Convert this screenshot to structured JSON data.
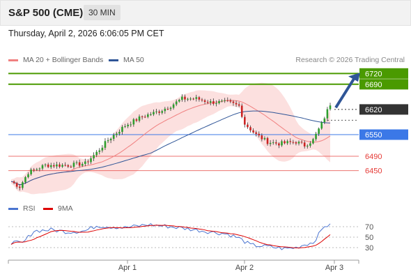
{
  "header": {
    "title": "S&P 500 (CME)",
    "timeframe": "30 MIN"
  },
  "subheader": {
    "datetime": "Thursday, April 2, 2026 6:06:05 PM CET"
  },
  "legend": {
    "items": [
      {
        "label": "MA 20 + Bollinger Bands",
        "color": "#f08080"
      },
      {
        "label": "MA 50",
        "color": "#2f5597"
      }
    ],
    "credit": "Research © 2026 Trading Central"
  },
  "rsi_legend": {
    "items": [
      {
        "label": "RSI",
        "color": "#4a74d0"
      },
      {
        "label": "9MA",
        "color": "#dd0000"
      }
    ]
  },
  "chart_data": {
    "type": "candlestick",
    "price_range": [
      6395,
      6740
    ],
    "x_labels": [
      "Apr 1",
      "Apr 2",
      "Apr 3"
    ],
    "current_price": 6620,
    "levels": [
      {
        "value": 6720,
        "label": "6720",
        "color": "#4a9a00",
        "kind": "resistance"
      },
      {
        "value": 6690,
        "label": "6690",
        "color": "#4a9a00",
        "kind": "resistance"
      },
      {
        "value": 6620,
        "label": "6620",
        "color": "#333333",
        "kind": "current"
      },
      {
        "value": 6550,
        "label": "6550",
        "color": "#3b78e7",
        "kind": "pivot"
      },
      {
        "value": 6490,
        "label": "6490",
        "color": "#e53935",
        "kind": "support"
      },
      {
        "value": 6450,
        "label": "6450",
        "color": "#e53935",
        "kind": "support"
      }
    ],
    "rsi": {
      "ticks": [
        70,
        50,
        30
      ],
      "range": [
        10,
        90
      ]
    }
  }
}
